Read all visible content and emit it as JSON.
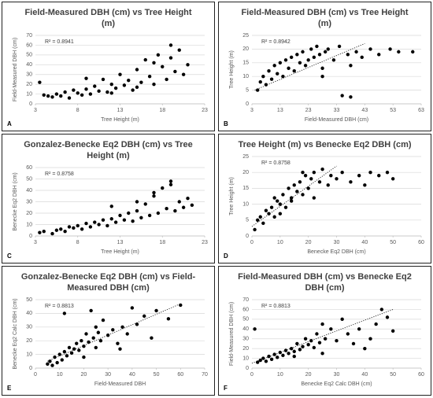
{
  "chart_data": [
    {
      "type": "scatter",
      "label": "A",
      "title": "Field-Measured DBH (cm) vs Tree Height (m)",
      "annotation": "R² = 0.8941",
      "x_label": "Tree Height (m)",
      "y_label": "Field-Measured DBH (cm)",
      "color": "#000000",
      "xlim": [
        3,
        23
      ],
      "xticks": [
        3,
        8,
        13,
        18,
        23
      ],
      "ylim": [
        0,
        70
      ],
      "yticks": [
        0,
        10,
        20,
        30,
        40,
        50,
        60,
        70
      ],
      "grid": true,
      "x": [
        3.5,
        4,
        5,
        5.5,
        6,
        6.5,
        7,
        7.5,
        8,
        8.5,
        9,
        9.5,
        10,
        10.5,
        11,
        11.5,
        12,
        12.5,
        13,
        13.5,
        14,
        14.5,
        15,
        15.5,
        16,
        16.5,
        17,
        17.5,
        18,
        18.5,
        19,
        19.5,
        20,
        20.5,
        21,
        4.5,
        9,
        12,
        15,
        17,
        19
      ],
      "values": [
        22,
        9,
        7,
        10,
        8,
        12,
        6,
        14,
        11,
        9,
        15,
        10,
        18,
        13,
        25,
        12,
        20,
        16,
        30,
        19,
        24,
        14,
        35,
        22,
        45,
        28,
        20,
        50,
        38,
        25,
        60,
        33,
        55,
        30,
        40,
        8,
        26,
        11,
        17,
        42,
        47
      ]
    },
    {
      "type": "scatter",
      "label": "B",
      "title": "Field-Measured DBH (cm) vs Tree Height (m)",
      "annotation": "R² = 0.8942",
      "x_label": "Field-Measured DBH (cm)",
      "y_label": "Tree Height (m)",
      "color": "#000000",
      "xlim": [
        3,
        63
      ],
      "xticks": [
        3,
        13,
        23,
        33,
        43,
        53,
        63
      ],
      "ylim": [
        0,
        25
      ],
      "yticks": [
        0,
        5,
        10,
        15,
        20,
        25
      ],
      "grid": true,
      "trendline": {
        "x": [
          4,
          43
        ],
        "y": [
          5,
          22
        ]
      },
      "x": [
        5,
        6,
        7,
        8,
        9,
        10,
        11,
        12,
        13,
        14,
        15,
        16,
        17,
        18,
        19,
        20,
        21,
        22,
        23,
        24,
        25,
        26,
        27,
        28,
        29,
        30,
        32,
        34,
        35,
        37,
        38,
        40,
        42,
        45,
        48,
        52,
        55,
        60,
        28,
        38
      ],
      "values": [
        5,
        8,
        10,
        7,
        12,
        9,
        14,
        11,
        15,
        10,
        16,
        13,
        17,
        12,
        18,
        15,
        19,
        14,
        16,
        20,
        17,
        21,
        18,
        13,
        19,
        20,
        16,
        21,
        3,
        18,
        2.5,
        19,
        17,
        20,
        18,
        20,
        19,
        19,
        10,
        14
      ]
    },
    {
      "type": "scatter",
      "label": "C",
      "title": "Gonzalez-Benecke Eq2 DBH (cm) vs Tree Height (m)",
      "annotation": "R² = 0.8758",
      "x_label": "Tree Height (m)",
      "y_label": "Benecke Eq2 DBH (cm)",
      "color": "#000000",
      "xlim": [
        3,
        23
      ],
      "xticks": [
        3,
        8,
        13,
        18,
        23
      ],
      "ylim": [
        0,
        60
      ],
      "yticks": [
        0,
        10,
        20,
        30,
        40,
        50,
        60
      ],
      "grid": true,
      "x": [
        3.5,
        4,
        5,
        5.5,
        6,
        6.5,
        7,
        7.5,
        8,
        8.5,
        9,
        9.5,
        10,
        10.5,
        11,
        11.5,
        12,
        12.5,
        13,
        13.5,
        14,
        14.5,
        15,
        15.5,
        16,
        16.5,
        17,
        17.5,
        18,
        18.5,
        19,
        19.5,
        20,
        20.5,
        21,
        21.5,
        12,
        15,
        17,
        19
      ],
      "values": [
        3,
        4,
        2,
        5,
        6,
        4,
        8,
        7,
        9,
        6,
        11,
        8,
        12,
        10,
        14,
        9,
        15,
        12,
        18,
        14,
        20,
        13,
        22,
        16,
        28,
        18,
        35,
        20,
        42,
        24,
        48,
        22,
        30,
        25,
        33,
        27,
        26,
        30,
        38,
        45
      ]
    },
    {
      "type": "scatter",
      "label": "D",
      "title": "Tree Height (m) vs Benecke Eq2 DBH (cm)",
      "annotation": "R² = 0.8758",
      "x_label": "Benecke Eq2 DBH (cm)",
      "y_label": "Tree Height (m)",
      "color": "#000000",
      "xlim": [
        0,
        60
      ],
      "xticks": [
        0,
        10,
        20,
        30,
        40,
        50,
        60
      ],
      "ylim": [
        0,
        25
      ],
      "yticks": [
        0,
        5,
        10,
        15,
        20,
        25
      ],
      "grid": true,
      "trendline": {
        "x": [
          0,
          30
        ],
        "y": [
          3,
          22
        ]
      },
      "x": [
        1,
        2,
        3,
        4,
        5,
        6,
        7,
        8,
        9,
        10,
        11,
        12,
        13,
        14,
        15,
        16,
        17,
        18,
        19,
        20,
        21,
        22,
        24,
        25,
        27,
        28,
        30,
        32,
        35,
        38,
        40,
        42,
        45,
        48,
        50,
        10,
        14,
        18,
        22,
        8
      ],
      "values": [
        2,
        5,
        6,
        4,
        8,
        7,
        9,
        6,
        11,
        10,
        13,
        9,
        15,
        12,
        16,
        14,
        17,
        13,
        19,
        15,
        18,
        20,
        17,
        21,
        16,
        19,
        18,
        20,
        17,
        19,
        16,
        20,
        19,
        20,
        18,
        7,
        11,
        20,
        12,
        12
      ]
    },
    {
      "type": "scatter",
      "label": "E",
      "title": "Gonzalez-Benecke Eq2 DBH (cm) vs Field-Measured DBH (cm)",
      "annotation": "R² = 0.8813",
      "x_label": "Field-Measured DBH",
      "y_label": "Benecke Eq2 Calc DBH (cm)",
      "color": "#000000",
      "xlim": [
        0,
        70
      ],
      "xticks": [
        0,
        10,
        20,
        30,
        40,
        50,
        60,
        70
      ],
      "ylim": [
        0,
        50
      ],
      "yticks": [
        0,
        10,
        20,
        30,
        40,
        50
      ],
      "grid": true,
      "trendline": {
        "x": [
          5,
          60
        ],
        "y": [
          5,
          47
        ]
      },
      "x": [
        5,
        6,
        7,
        8,
        9,
        10,
        11,
        12,
        13,
        14,
        15,
        16,
        17,
        18,
        19,
        20,
        21,
        22,
        23,
        24,
        25,
        26,
        27,
        28,
        30,
        32,
        34,
        36,
        38,
        40,
        42,
        45,
        48,
        50,
        55,
        60,
        12,
        20,
        25,
        35
      ],
      "values": [
        3,
        5,
        2,
        8,
        4,
        10,
        6,
        12,
        9,
        15,
        11,
        14,
        18,
        13,
        20,
        16,
        25,
        19,
        42,
        22,
        15,
        26,
        20,
        35,
        24,
        28,
        18,
        30,
        25,
        44,
        32,
        38,
        22,
        42,
        36,
        46,
        40,
        8,
        30,
        14
      ]
    },
    {
      "type": "scatter",
      "label": "F",
      "title": "Field-Measured DBH (cm) vs Benecke Eq2 DBH (cm)",
      "annotation": "R² = 0.8813",
      "x_label": "Benecke Eq2 Calc DBH (cm)",
      "y_label": "Field-Measured DBH (cm)",
      "color": "#000000",
      "xlim": [
        0,
        60
      ],
      "xticks": [
        0,
        10,
        20,
        30,
        40,
        50,
        60
      ],
      "ylim": [
        0,
        70
      ],
      "yticks": [
        0,
        10,
        20,
        30,
        40,
        50,
        60,
        70
      ],
      "grid": true,
      "trendline": {
        "x": [
          0,
          50
        ],
        "y": [
          5,
          60
        ]
      },
      "x": [
        1,
        2,
        3,
        4,
        5,
        6,
        7,
        8,
        9,
        10,
        11,
        12,
        13,
        14,
        15,
        16,
        17,
        18,
        19,
        20,
        21,
        22,
        23,
        24,
        25,
        26,
        28,
        30,
        32,
        34,
        36,
        38,
        40,
        42,
        44,
        46,
        48,
        50,
        15,
        25
      ],
      "values": [
        40,
        6,
        8,
        10,
        7,
        12,
        9,
        14,
        11,
        16,
        13,
        18,
        15,
        20,
        17,
        25,
        19,
        22,
        30,
        24,
        28,
        21,
        35,
        26,
        45,
        30,
        40,
        28,
        50,
        35,
        25,
        40,
        20,
        30,
        45,
        60,
        52,
        38,
        12,
        15
      ]
    }
  ]
}
